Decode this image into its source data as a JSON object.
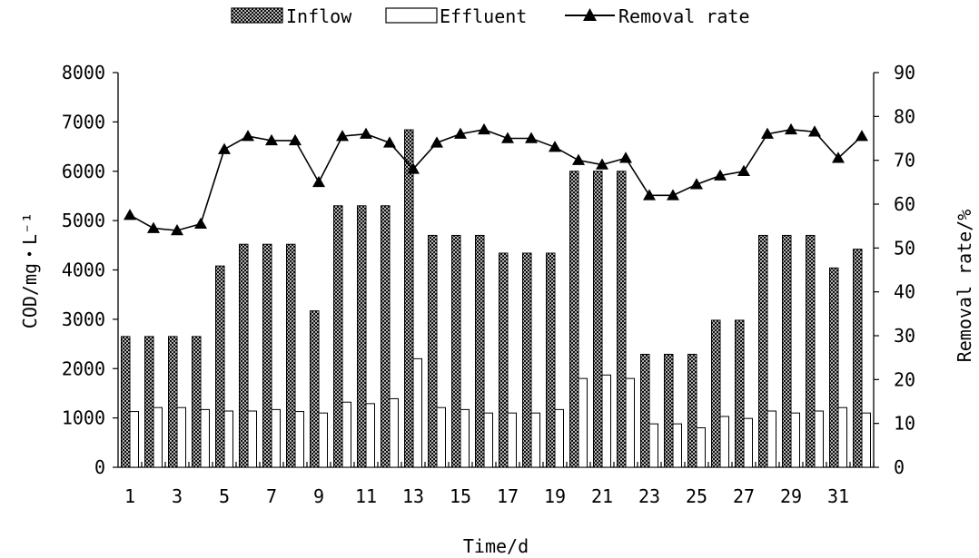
{
  "chart_data": {
    "type": "bar",
    "categories": [
      "1",
      "2",
      "3",
      "4",
      "5",
      "6",
      "7",
      "8",
      "9",
      "10",
      "11",
      "12",
      "13",
      "14",
      "15",
      "16",
      "17",
      "18",
      "19",
      "20",
      "21",
      "22",
      "23",
      "24",
      "25",
      "26",
      "27",
      "28",
      "29",
      "30",
      "31",
      "32"
    ],
    "x_tick_labels": [
      "1",
      "3",
      "5",
      "7",
      "9",
      "11",
      "13",
      "15",
      "17",
      "19",
      "21",
      "23",
      "25",
      "27",
      "29",
      "31"
    ],
    "xlabel": "Time/d",
    "ylabel_left": "COD/mg・L⁻¹",
    "ylabel_right": "Removal rate/%",
    "ylim_left": [
      0,
      8000
    ],
    "ylim_right": [
      0,
      90
    ],
    "y_left_ticks": [
      "0",
      "1000",
      "2000",
      "3000",
      "4000",
      "5000",
      "6000",
      "7000",
      "8000"
    ],
    "y_right_ticks": [
      "0",
      "10",
      "20",
      "30",
      "40",
      "50",
      "60",
      "70",
      "80",
      "90"
    ],
    "grid": false,
    "legend_position": "top",
    "series": [
      {
        "name": "Inflow",
        "kind": "bar",
        "axis": "left",
        "pattern": "crosshatch",
        "values": [
          2650,
          2650,
          2650,
          2650,
          4080,
          4520,
          4520,
          4520,
          3170,
          5300,
          5300,
          5300,
          6840,
          4700,
          4700,
          4700,
          4340,
          4340,
          4340,
          6000,
          6000,
          6000,
          2290,
          2290,
          2290,
          2980,
          2980,
          4700,
          4700,
          4700,
          4040,
          4420
        ]
      },
      {
        "name": "Effluent",
        "kind": "bar",
        "axis": "left",
        "pattern": "white",
        "values": [
          1130,
          1210,
          1210,
          1170,
          1140,
          1140,
          1170,
          1130,
          1100,
          1320,
          1290,
          1390,
          2200,
          1210,
          1170,
          1100,
          1100,
          1100,
          1170,
          1800,
          1870,
          1800,
          880,
          880,
          800,
          1030,
          990,
          1140,
          1100,
          1140,
          1210,
          1100
        ]
      },
      {
        "name": "Removal rate",
        "kind": "line",
        "axis": "right",
        "marker": "triangle",
        "values": [
          57.5,
          54.5,
          54,
          55.5,
          72.5,
          75.5,
          74.5,
          74.5,
          65,
          75.5,
          76,
          74,
          68,
          74,
          76,
          77,
          75,
          75,
          73,
          70,
          69,
          70.5,
          62,
          62,
          64.5,
          66.5,
          67.5,
          76,
          77,
          76.5,
          70.5,
          75.5
        ]
      }
    ],
    "colors": {
      "bar_fill": "#000000",
      "bar_hatch_bg": "#ffffff",
      "axis": "#000000"
    }
  }
}
